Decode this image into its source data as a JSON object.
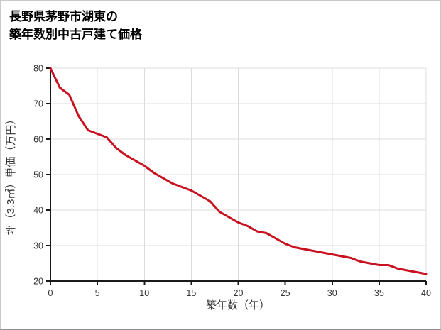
{
  "page": {
    "title_line1": "長野県茅野市湖東の",
    "title_line2": "築年数別中古戸建て価格"
  },
  "chart_data": {
    "type": "line",
    "title": "長野県茅野市湖東の築年数別中古戸建て価格",
    "xlabel": "築年数（年）",
    "ylabel": "坪（3.3㎡）単価（万円）",
    "xlim": [
      0,
      40
    ],
    "ylim": [
      20,
      80
    ],
    "xticks": [
      0,
      5,
      10,
      15,
      20,
      25,
      30,
      35,
      40
    ],
    "yticks": [
      20,
      30,
      40,
      50,
      60,
      70,
      80
    ],
    "grid": true,
    "legend": false,
    "line_color": "#c9121f",
    "x": [
      0,
      1,
      2,
      3,
      4,
      5,
      6,
      7,
      8,
      9,
      10,
      11,
      12,
      13,
      14,
      15,
      16,
      17,
      18,
      19,
      20,
      21,
      22,
      23,
      24,
      25,
      26,
      27,
      28,
      29,
      30,
      31,
      32,
      33,
      34,
      35,
      36,
      37,
      38,
      39,
      40
    ],
    "values": [
      80,
      74.5,
      72.5,
      66.5,
      62.5,
      61.5,
      60.5,
      57.5,
      55.5,
      54,
      52.5,
      50.5,
      49,
      47.5,
      46.5,
      45.5,
      44,
      42.5,
      39.5,
      38,
      36.5,
      35.5,
      34,
      33.5,
      32,
      30.5,
      29.5,
      29,
      28.5,
      28,
      27.5,
      27,
      26.5,
      25.5,
      25,
      24.5,
      24.5,
      23.5,
      23,
      22.5,
      22
    ]
  },
  "colors": {
    "grid": "#dcdcdc",
    "axis": "#1a1a1a",
    "tick_text": "#333333"
  }
}
